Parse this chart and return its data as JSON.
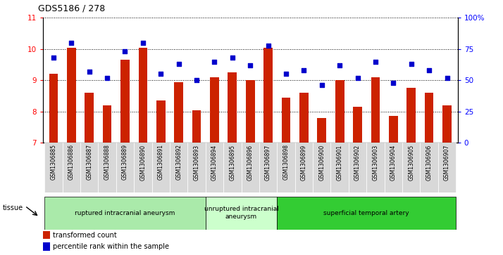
{
  "title": "GDS5186 / 278",
  "samples": [
    "GSM1306885",
    "GSM1306886",
    "GSM1306887",
    "GSM1306888",
    "GSM1306889",
    "GSM1306890",
    "GSM1306891",
    "GSM1306892",
    "GSM1306893",
    "GSM1306894",
    "GSM1306895",
    "GSM1306896",
    "GSM1306897",
    "GSM1306898",
    "GSM1306899",
    "GSM1306900",
    "GSM1306901",
    "GSM1306902",
    "GSM1306903",
    "GSM1306904",
    "GSM1306905",
    "GSM1306906",
    "GSM1306907"
  ],
  "transformed_count": [
    9.2,
    10.05,
    8.6,
    8.2,
    9.65,
    10.05,
    8.35,
    8.95,
    8.05,
    9.1,
    9.25,
    9.0,
    10.05,
    8.45,
    8.6,
    7.8,
    9.0,
    8.15,
    9.1,
    7.85,
    8.75,
    8.6,
    8.2
  ],
  "percentile_rank": [
    68,
    80,
    57,
    52,
    73,
    80,
    55,
    63,
    50,
    65,
    68,
    62,
    78,
    55,
    58,
    46,
    62,
    52,
    65,
    48,
    63,
    58,
    52
  ],
  "groups": [
    {
      "label": "ruptured intracranial aneurysm",
      "start": 0,
      "end": 9,
      "color": "#aaeaaa"
    },
    {
      "label": "unruptured intracranial\naneurysm",
      "start": 9,
      "end": 13,
      "color": "#ccffcc"
    },
    {
      "label": "superficial temporal artery",
      "start": 13,
      "end": 23,
      "color": "#33cc33"
    }
  ],
  "ylim_left": [
    7,
    11
  ],
  "ylim_right": [
    0,
    100
  ],
  "yticks_left": [
    7,
    8,
    9,
    10,
    11
  ],
  "yticks_right": [
    0,
    25,
    50,
    75,
    100
  ],
  "yticklabels_right": [
    "0",
    "25",
    "50",
    "75",
    "100%"
  ],
  "bar_color": "#cc2200",
  "dot_color": "#0000cc",
  "bg_xtick": "#d8d8d8",
  "tissue_label": "tissue",
  "legend_bar_label": "transformed count",
  "legend_dot_label": "percentile rank within the sample"
}
